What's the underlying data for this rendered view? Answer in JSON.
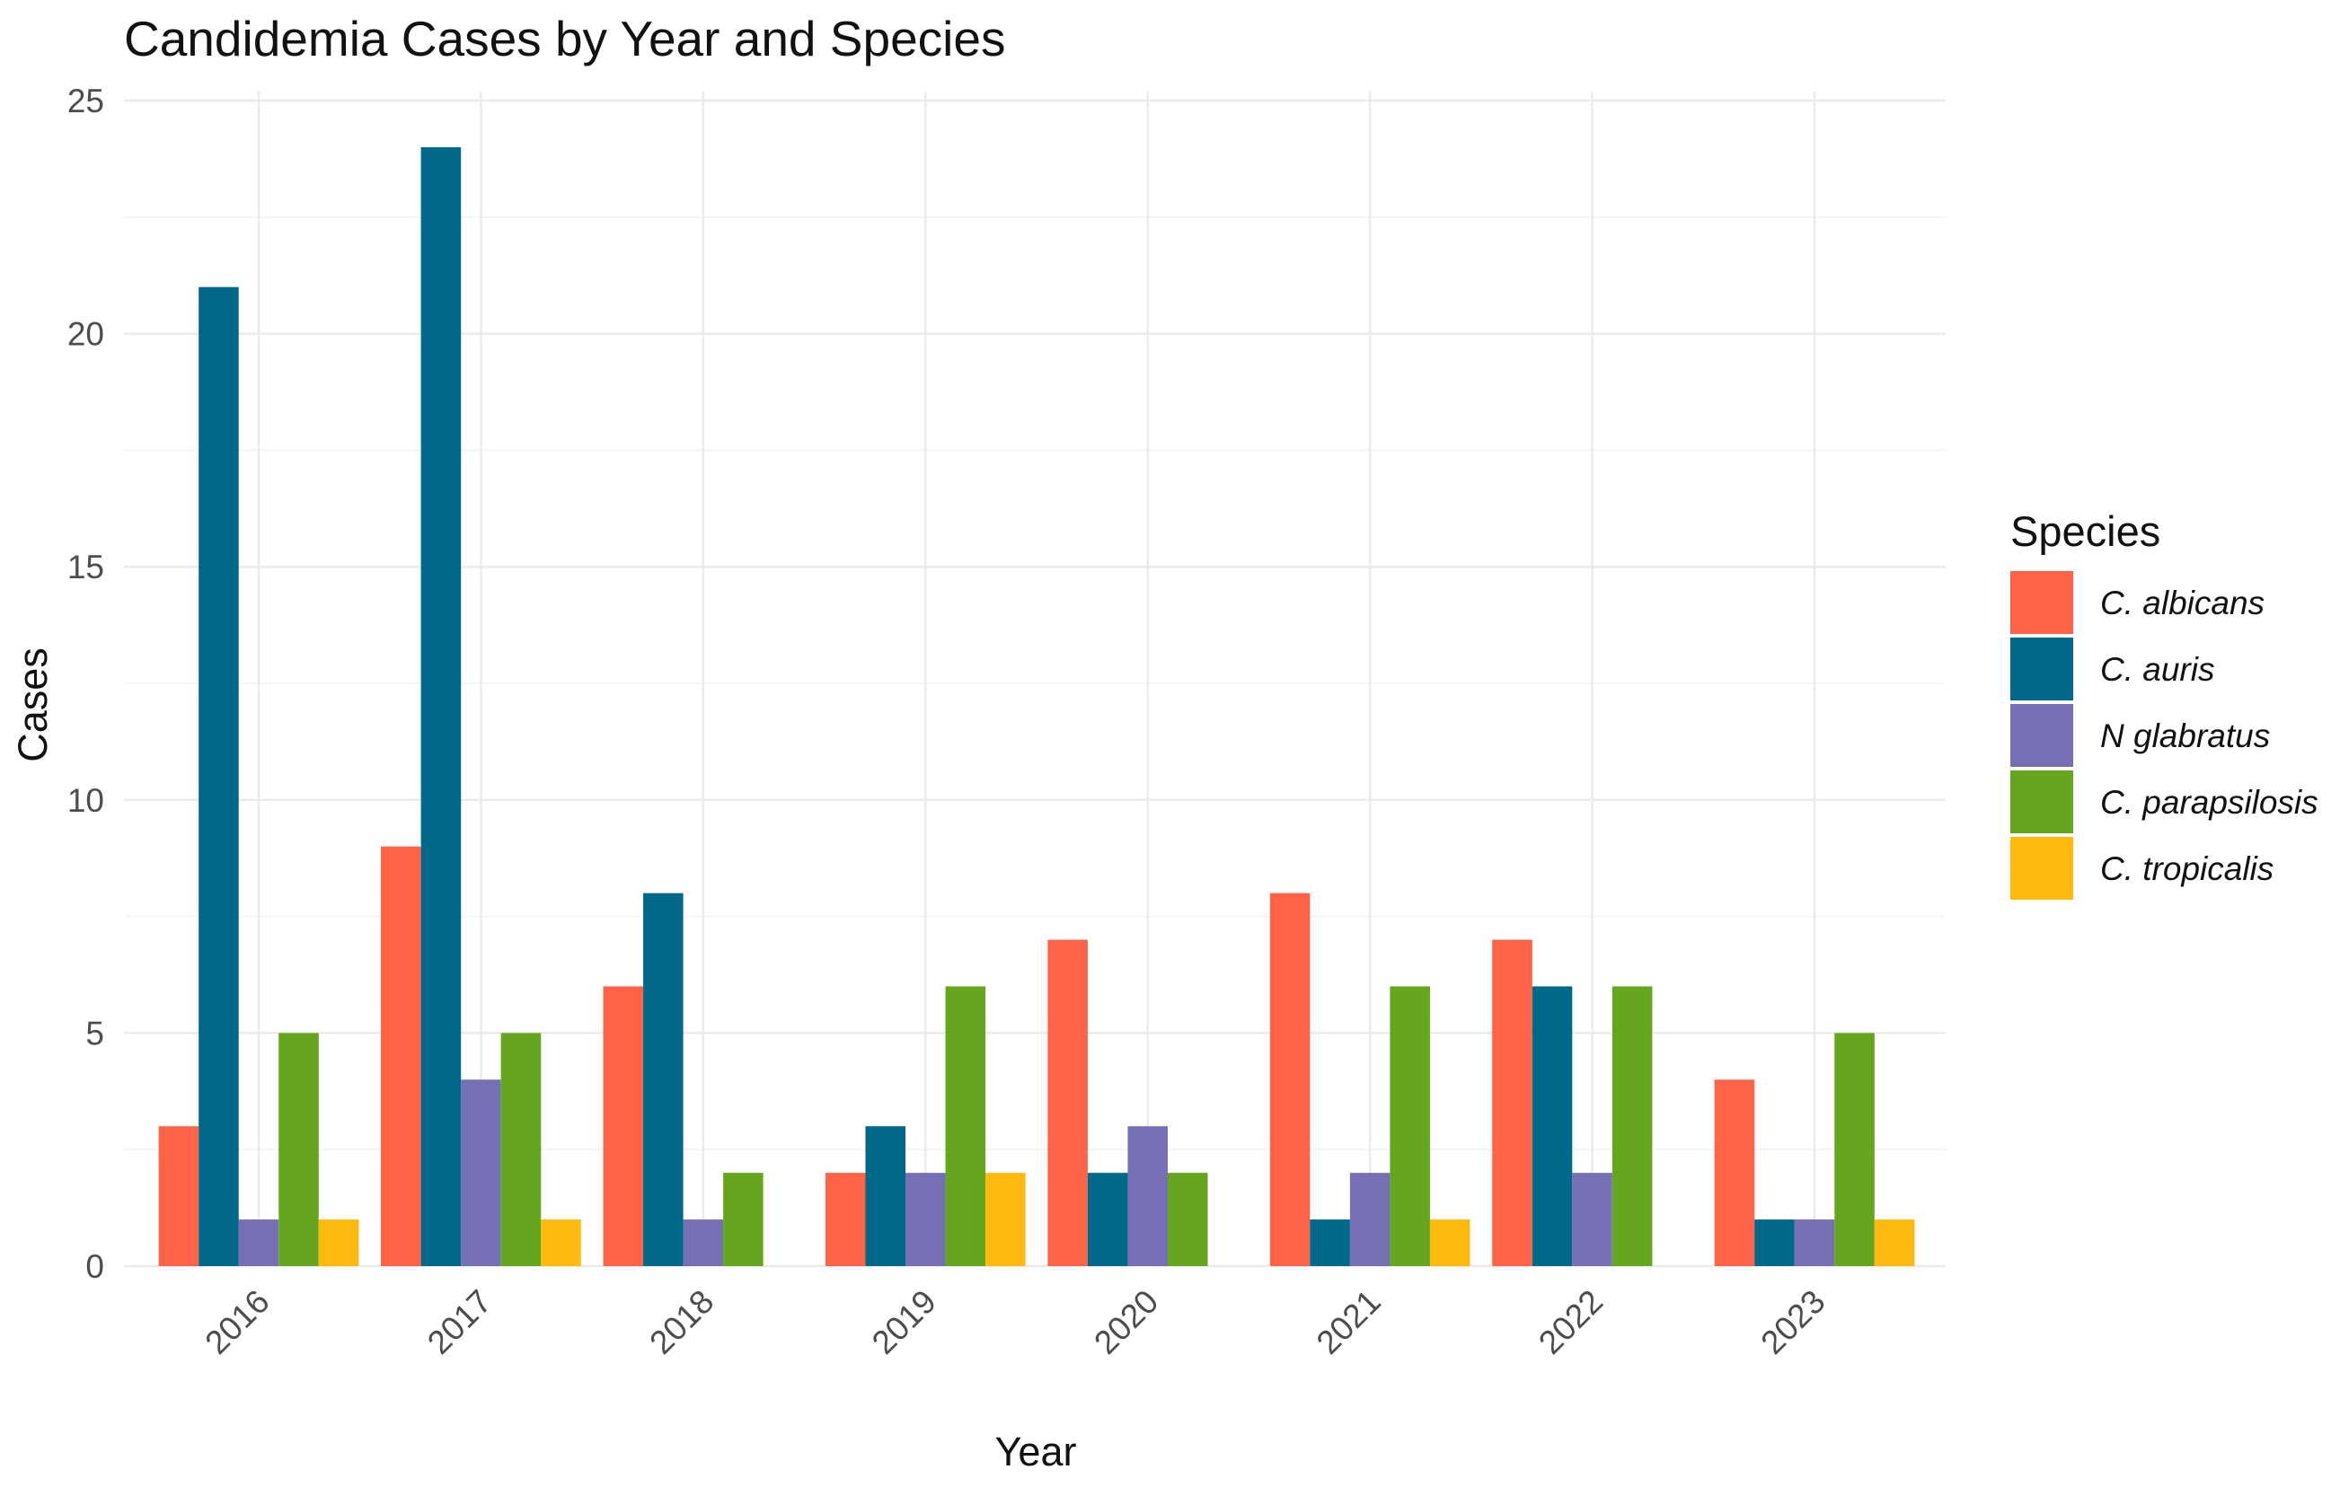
{
  "chart_data": {
    "type": "bar",
    "title": "Candidemia Cases by Year and Species",
    "xlabel": "Year",
    "ylabel": "Cases",
    "categories": [
      "2016",
      "2017",
      "2018",
      "2019",
      "2020",
      "2021",
      "2022",
      "2023"
    ],
    "ylim": [
      0,
      25
    ],
    "yticks": [
      0,
      5,
      10,
      15,
      20,
      25
    ],
    "grid": true,
    "legend": {
      "title": "Species",
      "position": "right"
    },
    "series": [
      {
        "name": "C. albicans",
        "color": "#FF6347",
        "values": [
          3,
          9,
          6,
          2,
          7,
          8,
          7,
          4
        ]
      },
      {
        "name": "C. auris",
        "color": "#006888",
        "values": [
          21,
          24,
          8,
          3,
          2,
          1,
          6,
          1
        ]
      },
      {
        "name": "N glabratus",
        "color": "#7570B3",
        "values": [
          1,
          4,
          1,
          2,
          3,
          2,
          2,
          1
        ]
      },
      {
        "name": "C. parapsilosis",
        "color": "#66A61E",
        "values": [
          5,
          5,
          2,
          6,
          2,
          6,
          6,
          5
        ]
      },
      {
        "name": "C. tropicalis",
        "color": "#FFB90F",
        "values": [
          1,
          1,
          0,
          2,
          0,
          1,
          0,
          1
        ]
      }
    ]
  }
}
